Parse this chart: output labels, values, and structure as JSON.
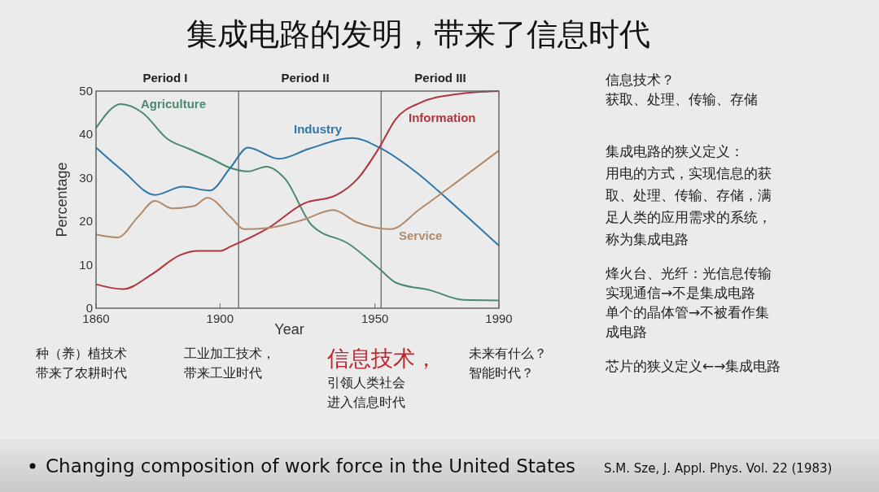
{
  "chart_data": {
    "type": "line",
    "title": "集成电路的发明，带来了信息时代",
    "xlabel": "Year",
    "ylabel": "Percentage",
    "xlim": [
      1860,
      1990
    ],
    "xticks": [
      1860,
      1900,
      1950,
      1990
    ],
    "ylim": [
      0,
      50
    ],
    "yticks": [
      0,
      10,
      20,
      30,
      40,
      50
    ],
    "grid": false,
    "legend": false,
    "series": [
      {
        "name": "Agriculture",
        "color": "#4a8a6e",
        "x": [
          1860,
          1868,
          1875,
          1883,
          1890,
          1897,
          1903,
          1909,
          1915,
          1921,
          1929.6,
          1941.8,
          1951.4,
          1956.7,
          1968,
          1978.6,
          1990
        ],
        "values": [
          41.5,
          47,
          45,
          39,
          36.7,
          34.5,
          32.4,
          31.5,
          32.6,
          29.8,
          19.1,
          14.7,
          9.1,
          5.9,
          4.1,
          1.9,
          1.8
        ]
      },
      {
        "name": "Industry",
        "color": "#2f77a8",
        "x": [
          1860,
          1868.7,
          1879,
          1888,
          1896.7,
          1903.4,
          1909,
          1919,
          1928.7,
          1942.7,
          1951.4,
          1962.8,
          1975,
          1990
        ],
        "values": [
          37,
          31.6,
          26.1,
          28,
          27.1,
          32.4,
          37,
          34.4,
          36.7,
          39.2,
          37,
          31.6,
          24.1,
          14.4
        ]
      },
      {
        "name": "Information",
        "color": "#b0353c",
        "x": [
          1860,
          1868.7,
          1878,
          1887,
          1893,
          1900,
          1903.4,
          1915.7,
          1927,
          1937.4,
          1944.4,
          1951.4,
          1956.7,
          1964.6,
          1976.5,
          1990
        ],
        "values": [
          5.5,
          4.4,
          7.8,
          12.2,
          13.2,
          13.2,
          14.2,
          18.5,
          24.1,
          26,
          29.8,
          37,
          43.5,
          47.3,
          49.3,
          50
        ]
      },
      {
        "name": "Service",
        "color": "#b08a6a",
        "x": [
          1860,
          1867,
          1873.5,
          1879,
          1884.5,
          1891.5,
          1896,
          1903.4,
          1907.8,
          1915.7,
          1927,
          1936.5,
          1944.4,
          1955,
          1964.6,
          1976.5,
          1990
        ],
        "values": [
          17,
          16.3,
          21,
          24.7,
          23,
          23.5,
          25.4,
          21,
          18.2,
          18.5,
          20.4,
          22.6,
          19.7,
          18.2,
          22.9,
          29.1,
          36.3
        ]
      }
    ],
    "ref_lines": [
      {
        "axis": "x",
        "value": 1906,
        "color": "#777777"
      },
      {
        "axis": "x",
        "value": 1952,
        "color": "#777777"
      }
    ],
    "annotations": [
      "信息技术？获取、处理、传输、存储",
      "集成电路的狭义定义：用电的方式，实现信息的获取、处理、传输、存储，满足人类的应用需求的系统，称为集成电路",
      "烽火台、光纤：光信息传输实现通信→不是集成电路单个的晶体管→不被看作集成电路",
      "芯片的狭义定义←→集成电路",
      "种（养）植技术带来了农耕时代",
      "工业加工技术，带来工业时代",
      "信息技术，",
      "引领人类社会进入信息时代",
      "未来有什么？智能时代？",
      "Changing composition of work force in the United States",
      "S.M. Sze,  J. Appl. Phys. Vol. 22 (1983)",
      "Period I",
      "Period II",
      "Period III"
    ]
  }
}
